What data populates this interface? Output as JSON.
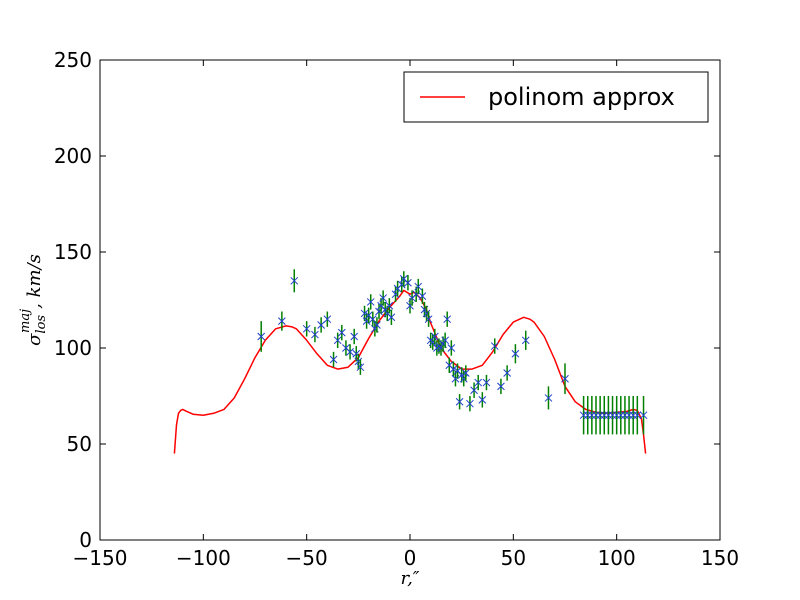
{
  "chart_data": {
    "type": "scatter",
    "title": "",
    "xlabel": "r,″",
    "ylabel_main": "σ",
    "ylabel_sup": "maj",
    "ylabel_sub": "los",
    "ylabel_tail": ", km/s",
    "xlim": [
      -150,
      150
    ],
    "ylim": [
      0,
      250
    ],
    "xticks": [
      -150,
      -100,
      -50,
      0,
      50,
      100,
      150
    ],
    "xtick_labels": [
      "−150",
      "−100",
      "−50",
      "0",
      "50",
      "100",
      "150"
    ],
    "yticks": [
      0,
      50,
      100,
      150,
      200,
      250
    ],
    "ytick_labels": [
      "0",
      "50",
      "100",
      "150",
      "200",
      "250"
    ],
    "grid": false,
    "legend": {
      "placement": "top-right",
      "entries": [
        "polinom approx"
      ]
    },
    "colors": {
      "curve": "#ff0000",
      "markers": "#1f3fcc",
      "errorbars": "#008000"
    },
    "series": [
      {
        "name": "polinom approx",
        "kind": "line",
        "x": [
          -114,
          -113,
          -112,
          -111,
          -110,
          -108,
          -105,
          -100,
          -95,
          -90,
          -85,
          -80,
          -75,
          -70,
          -65,
          -60,
          -57,
          -55,
          -50,
          -45,
          -40,
          -35,
          -30,
          -25,
          -20,
          -15,
          -10,
          -5,
          -3,
          0,
          2,
          5,
          8,
          10,
          15,
          20,
          25,
          30,
          35,
          40,
          45,
          50,
          55,
          58,
          60,
          65,
          70,
          75,
          80,
          85,
          90,
          95,
          100,
          105,
          108,
          110,
          112,
          113,
          114
        ],
        "y": [
          45,
          60,
          66,
          67.5,
          68,
          67,
          65.5,
          65,
          66,
          68,
          74,
          84,
          95,
          104,
          110,
          111.5,
          111,
          110,
          104,
          97,
          91,
          89,
          90,
          95,
          105,
          114,
          121,
          127,
          130,
          128,
          129,
          126,
          120,
          113,
          100,
          93,
          89,
          89,
          91,
          98,
          107,
          113.5,
          116,
          115,
          113.5,
          106,
          94,
          80,
          72,
          68,
          66.5,
          66,
          66.5,
          67,
          68,
          67.5,
          63,
          55,
          45
        ]
      },
      {
        "name": "",
        "kind": "points",
        "points": [
          [
            -72,
            106,
            8
          ],
          [
            -62,
            114,
            5
          ],
          [
            -56,
            135,
            6
          ],
          [
            -50,
            110,
            4
          ],
          [
            -46,
            107,
            4
          ],
          [
            -43,
            112,
            4
          ],
          [
            -40,
            115,
            4
          ],
          [
            -37,
            94,
            4
          ],
          [
            -35,
            104,
            4
          ],
          [
            -33,
            108,
            4
          ],
          [
            -31,
            100,
            4
          ],
          [
            -29,
            98,
            4
          ],
          [
            -27,
            106,
            4
          ],
          [
            -26,
            97,
            4
          ],
          [
            -25,
            93,
            4
          ],
          [
            -24,
            90,
            4
          ],
          [
            -22,
            118,
            4
          ],
          [
            -21,
            114,
            4
          ],
          [
            -20,
            117,
            4
          ],
          [
            -19,
            124,
            4
          ],
          [
            -18,
            115,
            4
          ],
          [
            -17,
            110,
            4
          ],
          [
            -16,
            112,
            4
          ],
          [
            -15,
            119,
            4
          ],
          [
            -14,
            122,
            4
          ],
          [
            -13,
            126,
            4
          ],
          [
            -12,
            120,
            4
          ],
          [
            -11,
            118,
            4
          ],
          [
            -10,
            122,
            4
          ],
          [
            -9,
            116,
            4
          ],
          [
            -7,
            128,
            4
          ],
          [
            -6,
            131,
            4
          ],
          [
            -4,
            133,
            4
          ],
          [
            -3,
            136,
            4
          ],
          [
            -1,
            134,
            4
          ],
          [
            0,
            122,
            4
          ],
          [
            1,
            126,
            4
          ],
          [
            3,
            128,
            4
          ],
          [
            4,
            132,
            4
          ],
          [
            6,
            127,
            4
          ],
          [
            7,
            120,
            4
          ],
          [
            8,
            118,
            4
          ],
          [
            9,
            115,
            4
          ],
          [
            10,
            104,
            4
          ],
          [
            11,
            103,
            4
          ],
          [
            12,
            106,
            4
          ],
          [
            13,
            100,
            4
          ],
          [
            14,
            101,
            4
          ],
          [
            15,
            100,
            4
          ],
          [
            16,
            102,
            4
          ],
          [
            17,
            104,
            4
          ],
          [
            18,
            115,
            4
          ],
          [
            19,
            91,
            4
          ],
          [
            20,
            100,
            4
          ],
          [
            21,
            89,
            4
          ],
          [
            22,
            84,
            4
          ],
          [
            23,
            88,
            4
          ],
          [
            24,
            72,
            4
          ],
          [
            25,
            86,
            4
          ],
          [
            26,
            84,
            4
          ],
          [
            27,
            87,
            4
          ],
          [
            29,
            71,
            4
          ],
          [
            31,
            78,
            4
          ],
          [
            33,
            82,
            4
          ],
          [
            35,
            73,
            4
          ],
          [
            37,
            82,
            4
          ],
          [
            41,
            101,
            4
          ],
          [
            44,
            80,
            4
          ],
          [
            47,
            87,
            4
          ],
          [
            51,
            97,
            5
          ],
          [
            56,
            104,
            5
          ],
          [
            67,
            74,
            6
          ],
          [
            75,
            84,
            8
          ],
          [
            84,
            65,
            10
          ],
          [
            86,
            65,
            10
          ],
          [
            88,
            65,
            10
          ],
          [
            90,
            65,
            10
          ],
          [
            92,
            65,
            10
          ],
          [
            94,
            65,
            10
          ],
          [
            96,
            65,
            10
          ],
          [
            98,
            65,
            10
          ],
          [
            100,
            65,
            10
          ],
          [
            102,
            65,
            10
          ],
          [
            104,
            65,
            10
          ],
          [
            106,
            65,
            10
          ],
          [
            108,
            65,
            10
          ],
          [
            110,
            65,
            10
          ],
          [
            113,
            65,
            10
          ]
        ]
      }
    ]
  }
}
